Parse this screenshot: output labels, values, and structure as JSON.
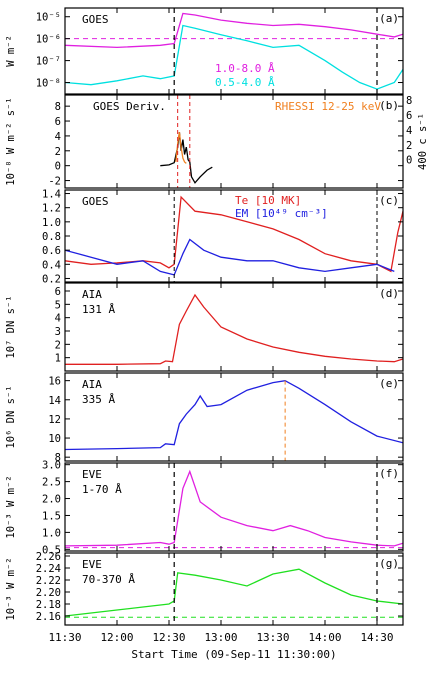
{
  "figure": {
    "xlabel": "Start Time (09-Sep-11 11:30:00)",
    "xlim": [
      "11:30",
      "14:45"
    ],
    "xticks": [
      "11:30",
      "12:00",
      "12:30",
      "13:00",
      "13:30",
      "14:00",
      "14:30"
    ],
    "flare_start": "12:33",
    "flare_end": "14:30",
    "rhessi_window": [
      "12:35",
      "12:42"
    ]
  },
  "chart_data": [
    {
      "type": "line",
      "panel": "(a)",
      "label": "GOES",
      "ylabel": "W m⁻²",
      "yscale": "log",
      "ylim": [
        3e-09,
        2.5e-05
      ],
      "ytick_labels": [
        "10⁻⁵",
        "10⁻⁶",
        "10⁻⁷",
        "10⁻⁸"
      ],
      "ytick_values": [
        1e-05,
        1e-06,
        1e-07,
        1e-08
      ],
      "reference_line": 1e-06,
      "series": [
        {
          "name": "1.0-8.0 Å",
          "color": "#e020e0",
          "x": [
            "11:30",
            "12:00",
            "12:25",
            "12:33",
            "12:38",
            "12:45",
            "13:00",
            "13:15",
            "13:30",
            "13:45",
            "14:00",
            "14:15",
            "14:30",
            "14:40",
            "14:45"
          ],
          "y": [
            5e-07,
            4e-07,
            5e-07,
            6e-07,
            1.4e-05,
            1.2e-05,
            7e-06,
            5e-06,
            4e-06,
            4.5e-06,
            3.5e-06,
            2.5e-06,
            1.6e-06,
            1.2e-06,
            1.6e-06
          ]
        },
        {
          "name": "0.5-4.0 Å",
          "color": "#00e0e0",
          "x": [
            "11:30",
            "11:45",
            "12:00",
            "12:15",
            "12:25",
            "12:33",
            "12:38",
            "12:45",
            "13:00",
            "13:15",
            "13:30",
            "13:45",
            "14:00",
            "14:10",
            "14:20",
            "14:30",
            "14:40",
            "14:45"
          ],
          "y": [
            1e-08,
            8e-09,
            1.2e-08,
            2e-08,
            1.5e-08,
            2e-08,
            4e-06,
            3e-06,
            1.5e-06,
            8e-07,
            4e-07,
            5e-07,
            1e-07,
            3e-08,
            1e-08,
            5e-09,
            1e-08,
            4e-08
          ]
        }
      ]
    },
    {
      "type": "line",
      "panel": "(b)",
      "label": "GOES Deriv.",
      "ylabel": "10⁻⁸ W m⁻² s⁻¹",
      "ylabel_right": "400 c s⁻¹",
      "ylim": [
        -3,
        9.5
      ],
      "yticks": [
        -2,
        0,
        2,
        4,
        6,
        8
      ],
      "yticks_right": [
        0,
        2,
        4,
        6,
        8
      ],
      "series": [
        {
          "name": "GOES Deriv.",
          "color": "#000000",
          "x": [
            "12:25",
            "12:30",
            "12:33",
            "12:35",
            "12:36",
            "12:37",
            "12:38",
            "12:39",
            "12:40",
            "12:41",
            "12:42",
            "12:43",
            "12:45",
            "12:48",
            "12:52",
            "12:55"
          ],
          "y": [
            0,
            0.1,
            0.4,
            2.5,
            4.5,
            2,
            3.5,
            1.5,
            2.5,
            0.8,
            0.5,
            -1.5,
            -2.3,
            -1.5,
            -0.6,
            -0.2
          ]
        },
        {
          "name": "RHESSI 12-25 keV",
          "color": "#f08020",
          "x": [
            "12:34",
            "12:35",
            "12:36",
            "12:37",
            "12:38",
            "12:39",
            "12:40"
          ],
          "y": [
            0.5,
            3,
            4.5,
            2.5,
            1,
            0.5,
            0.3
          ]
        }
      ]
    },
    {
      "type": "line",
      "panel": "(c)",
      "label": "GOES",
      "ylim": [
        0.15,
        1.45
      ],
      "yticks": [
        0.2,
        0.4,
        0.6,
        0.8,
        1.0,
        1.2,
        1.4
      ],
      "ytick_labels": [
        "0.2",
        "0.4",
        "0.6",
        "0.8",
        "1.0",
        "1.2",
        "1.4"
      ],
      "series": [
        {
          "name": "Te [10 MK]",
          "color": "#e02020",
          "x": [
            "11:30",
            "11:45",
            "12:00",
            "12:15",
            "12:25",
            "12:30",
            "12:33",
            "12:37",
            "12:45",
            "13:00",
            "13:15",
            "13:30",
            "13:45",
            "14:00",
            "14:15",
            "14:30",
            "14:38",
            "14:42",
            "14:45"
          ],
          "y": [
            0.45,
            0.4,
            0.42,
            0.45,
            0.42,
            0.35,
            0.4,
            1.35,
            1.15,
            1.1,
            1.0,
            0.9,
            0.75,
            0.55,
            0.45,
            0.4,
            0.3,
            0.85,
            1.15
          ]
        },
        {
          "name": "EM [10⁴⁹ cm⁻³]",
          "color": "#2020e0",
          "x": [
            "11:30",
            "11:45",
            "12:00",
            "12:15",
            "12:25",
            "12:33",
            "12:38",
            "12:42",
            "12:50",
            "13:00",
            "13:15",
            "13:30",
            "13:45",
            "14:00",
            "14:15",
            "14:30",
            "14:40"
          ],
          "y": [
            0.6,
            0.5,
            0.4,
            0.45,
            0.3,
            0.25,
            0.55,
            0.75,
            0.6,
            0.5,
            0.45,
            0.45,
            0.35,
            0.3,
            0.35,
            0.4,
            0.3
          ]
        }
      ]
    },
    {
      "type": "line",
      "panel": "(d)",
      "label": "AIA",
      "sublabel": "131 Å",
      "ylabel": "10⁷ DN s⁻¹",
      "ylim": [
        0,
        6.6
      ],
      "yticks": [
        1,
        2,
        3,
        4,
        5,
        6
      ],
      "series": [
        {
          "name": "131 Å",
          "color": "#e02020",
          "x": [
            "11:30",
            "12:00",
            "12:25",
            "12:28",
            "12:32",
            "12:36",
            "12:40",
            "12:45",
            "12:50",
            "13:00",
            "13:15",
            "13:30",
            "13:45",
            "14:00",
            "14:15",
            "14:30",
            "14:40",
            "14:45"
          ],
          "y": [
            0.5,
            0.5,
            0.55,
            0.75,
            0.7,
            3.5,
            4.5,
            5.7,
            4.8,
            3.3,
            2.4,
            1.8,
            1.4,
            1.1,
            0.9,
            0.75,
            0.7,
            0.9
          ]
        }
      ]
    },
    {
      "type": "line",
      "panel": "(e)",
      "label": "AIA",
      "sublabel": "335 Å",
      "ylabel": "10⁶ DN s⁻¹",
      "ylim": [
        7.6,
        16.8
      ],
      "yticks": [
        8,
        10,
        12,
        14,
        16
      ],
      "peak_time": "13:37",
      "series": [
        {
          "name": "335 Å",
          "color": "#2020e0",
          "x": [
            "11:30",
            "12:00",
            "12:25",
            "12:28",
            "12:33",
            "12:36",
            "12:40",
            "12:45",
            "12:48",
            "12:52",
            "13:00",
            "13:15",
            "13:30",
            "13:37",
            "13:45",
            "14:00",
            "14:15",
            "14:30",
            "14:45"
          ],
          "y": [
            8.8,
            8.9,
            9.0,
            9.4,
            9.3,
            11.5,
            12.5,
            13.5,
            14.4,
            13.3,
            13.5,
            15.0,
            15.8,
            16.0,
            15.2,
            13.5,
            11.7,
            10.2,
            9.5
          ]
        }
      ]
    },
    {
      "type": "line",
      "panel": "(f)",
      "label": "EVE",
      "sublabel": "1-70 Å",
      "ylabel": "10⁻³ W m⁻²",
      "ylim": [
        0.45,
        3.05
      ],
      "yticks": [
        0.5,
        1.0,
        1.5,
        2.0,
        2.5,
        3.0
      ],
      "ytick_labels": [
        "0.5",
        "1.0",
        "1.5",
        "2.0",
        "2.5",
        "3.0"
      ],
      "reference_line": 0.55,
      "series": [
        {
          "name": "1-70 Å",
          "color": "#e020e0",
          "x": [
            "11:30",
            "12:00",
            "12:25",
            "12:30",
            "12:33",
            "12:38",
            "12:42",
            "12:48",
            "13:00",
            "13:15",
            "13:30",
            "13:40",
            "13:50",
            "14:00",
            "14:15",
            "14:30",
            "14:40",
            "14:45"
          ],
          "y": [
            0.6,
            0.62,
            0.7,
            0.65,
            0.7,
            2.3,
            2.8,
            1.9,
            1.45,
            1.2,
            1.05,
            1.2,
            1.05,
            0.85,
            0.72,
            0.62,
            0.6,
            0.68
          ]
        }
      ]
    },
    {
      "type": "line",
      "panel": "(g)",
      "label": "EVE",
      "sublabel": "70-370 Å",
      "ylabel": "10⁻³ W m⁻²",
      "ylim": [
        2.145,
        2.265
      ],
      "yticks": [
        2.16,
        2.18,
        2.2,
        2.22,
        2.24,
        2.26
      ],
      "ytick_labels": [
        "2.16",
        "2.18",
        "2.20",
        "2.22",
        "2.24",
        "2.26"
      ],
      "reference_line": 2.158,
      "series": [
        {
          "name": "70-370 Å",
          "color": "#20e020",
          "x": [
            "11:30",
            "11:45",
            "12:00",
            "12:15",
            "12:30",
            "12:33",
            "12:35",
            "12:45",
            "13:00",
            "13:15",
            "13:30",
            "13:45",
            "14:00",
            "14:15",
            "14:30",
            "14:45"
          ],
          "y": [
            2.16,
            2.165,
            2.17,
            2.175,
            2.18,
            2.185,
            2.232,
            2.228,
            2.22,
            2.21,
            2.23,
            2.238,
            2.215,
            2.195,
            2.185,
            2.18
          ]
        }
      ]
    }
  ]
}
